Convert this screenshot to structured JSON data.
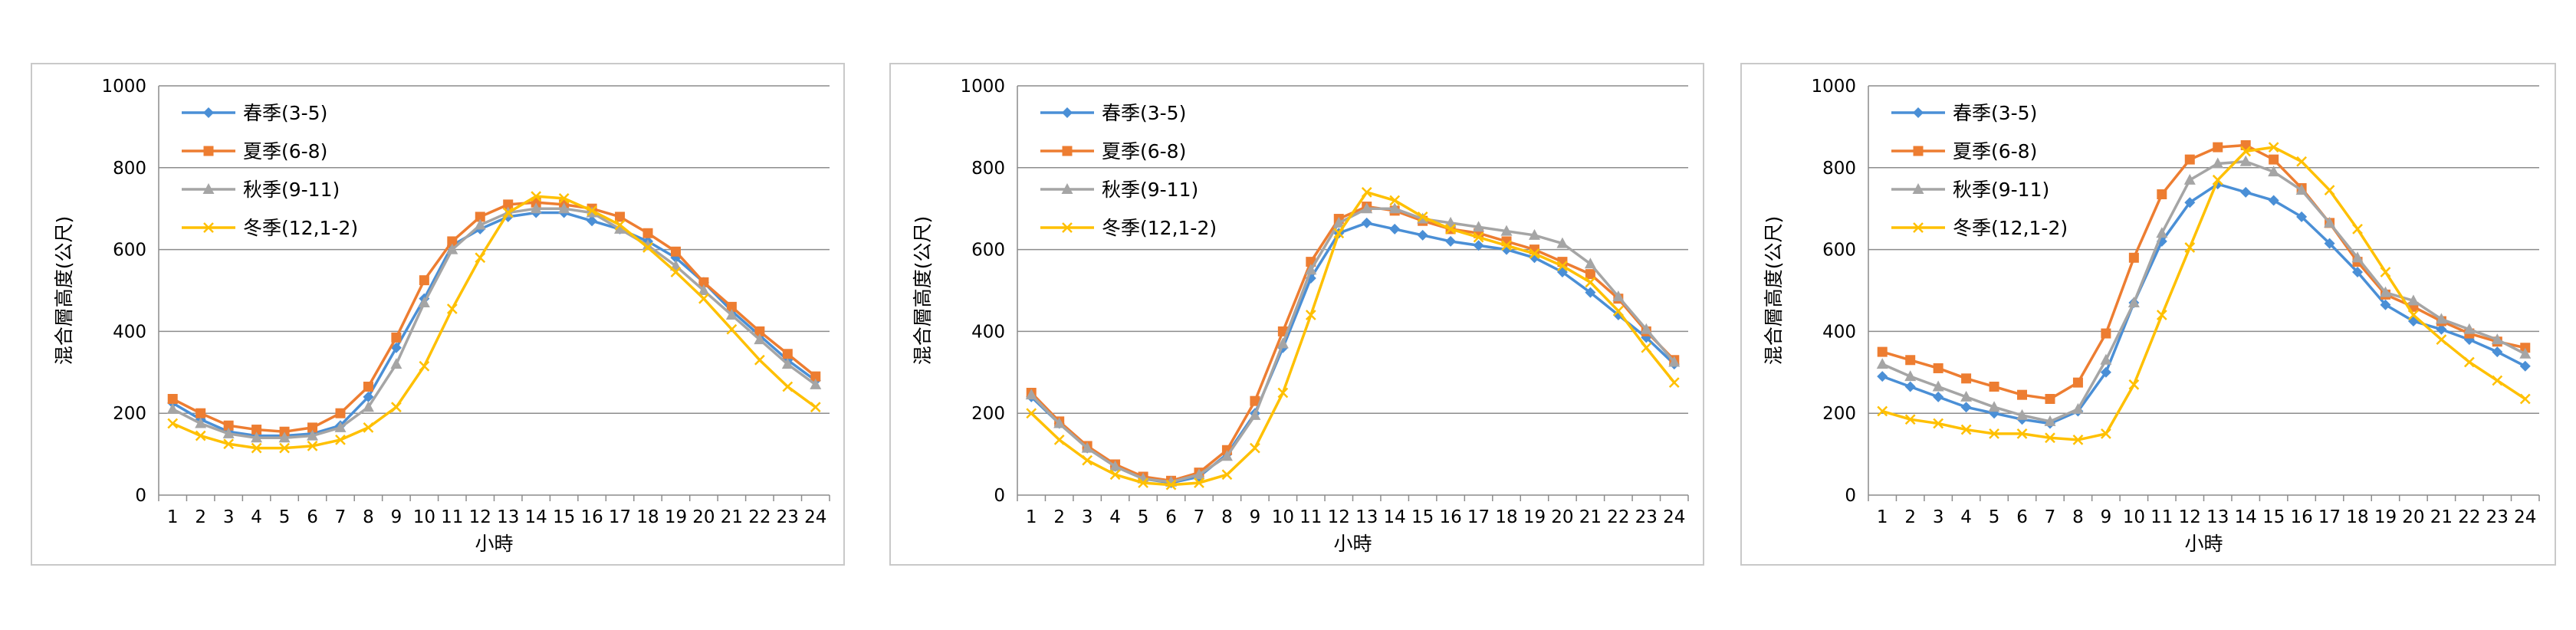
{
  "charts": [
    {
      "type": "line",
      "xlabel": "小時",
      "ylabel": "混合層高度(公尺)",
      "ylim": [
        0,
        1000
      ],
      "yticks": [
        0,
        200,
        400,
        600,
        800,
        1000
      ],
      "x": [
        1,
        2,
        3,
        4,
        5,
        6,
        7,
        8,
        9,
        10,
        11,
        12,
        13,
        14,
        15,
        16,
        17,
        18,
        19,
        20,
        21,
        22,
        23,
        24
      ],
      "grid": "horizontal",
      "legend_position": "top-left",
      "series": [
        {
          "name": "春季(3-5)",
          "color": "#4a8fd6",
          "marker": "diamond",
          "values": [
            225,
            185,
            155,
            145,
            145,
            150,
            170,
            240,
            360,
            480,
            610,
            650,
            680,
            690,
            690,
            670,
            650,
            620,
            580,
            520,
            450,
            390,
            330,
            280
          ]
        },
        {
          "name": "夏季(6-8)",
          "color": "#ed7d31",
          "marker": "square",
          "values": [
            235,
            200,
            170,
            160,
            155,
            165,
            200,
            265,
            385,
            525,
            620,
            680,
            710,
            715,
            710,
            700,
            680,
            640,
            595,
            520,
            460,
            400,
            345,
            290
          ]
        },
        {
          "name": "秋季(9-11)",
          "color": "#a5a5a5",
          "marker": "triangle",
          "values": [
            210,
            175,
            150,
            140,
            140,
            145,
            165,
            215,
            320,
            470,
            600,
            660,
            690,
            700,
            700,
            690,
            650,
            610,
            560,
            500,
            440,
            380,
            320,
            270
          ]
        },
        {
          "name": "冬季(12,1-2)",
          "color": "#ffc000",
          "marker": "x",
          "values": [
            175,
            145,
            125,
            115,
            115,
            120,
            135,
            165,
            215,
            315,
            455,
            580,
            690,
            730,
            725,
            695,
            660,
            605,
            545,
            480,
            405,
            330,
            265,
            215
          ]
        }
      ]
    },
    {
      "type": "line",
      "xlabel": "小時",
      "ylabel": "混合層高度(公尺)",
      "ylim": [
        0,
        1000
      ],
      "yticks": [
        0,
        200,
        400,
        600,
        800,
        1000
      ],
      "x": [
        1,
        2,
        3,
        4,
        5,
        6,
        7,
        8,
        9,
        10,
        11,
        12,
        13,
        14,
        15,
        16,
        17,
        18,
        19,
        20,
        21,
        22,
        23,
        24
      ],
      "grid": "horizontal",
      "legend_position": "top-left",
      "series": [
        {
          "name": "春季(3-5)",
          "color": "#4a8fd6",
          "marker": "diamond",
          "values": [
            240,
            175,
            115,
            70,
            40,
            30,
            45,
            100,
            200,
            360,
            530,
            640,
            665,
            650,
            635,
            620,
            610,
            600,
            580,
            545,
            495,
            440,
            385,
            320
          ]
        },
        {
          "name": "夏季(6-8)",
          "color": "#ed7d31",
          "marker": "square",
          "values": [
            250,
            180,
            120,
            75,
            45,
            35,
            55,
            110,
            230,
            400,
            570,
            675,
            705,
            695,
            670,
            650,
            640,
            620,
            600,
            570,
            540,
            480,
            400,
            330
          ]
        },
        {
          "name": "秋季(9-11)",
          "color": "#a5a5a5",
          "marker": "triangle",
          "values": [
            245,
            175,
            115,
            70,
            40,
            32,
            50,
            95,
            195,
            370,
            550,
            665,
            700,
            700,
            675,
            665,
            655,
            645,
            635,
            615,
            565,
            485,
            405,
            325
          ]
        },
        {
          "name": "冬季(12,1-2)",
          "color": "#ffc000",
          "marker": "x",
          "values": [
            200,
            135,
            85,
            50,
            30,
            25,
            30,
            50,
            115,
            250,
            440,
            640,
            740,
            720,
            680,
            650,
            630,
            610,
            590,
            560,
            520,
            450,
            360,
            275
          ]
        }
      ]
    },
    {
      "type": "line",
      "xlabel": "小時",
      "ylabel": "混合層高度(公尺)",
      "ylim": [
        0,
        1000
      ],
      "yticks": [
        0,
        200,
        400,
        600,
        800,
        1000
      ],
      "x": [
        1,
        2,
        3,
        4,
        5,
        6,
        7,
        8,
        9,
        10,
        11,
        12,
        13,
        14,
        15,
        16,
        17,
        18,
        19,
        20,
        21,
        22,
        23,
        24
      ],
      "grid": "horizontal",
      "legend_position": "top-left",
      "series": [
        {
          "name": "春季(3-5)",
          "color": "#4a8fd6",
          "marker": "diamond",
          "values": [
            290,
            265,
            240,
            215,
            200,
            185,
            175,
            205,
            300,
            470,
            620,
            715,
            760,
            740,
            720,
            680,
            615,
            545,
            465,
            425,
            405,
            380,
            350,
            315
          ]
        },
        {
          "name": "夏季(6-8)",
          "color": "#ed7d31",
          "marker": "square",
          "values": [
            350,
            330,
            310,
            285,
            265,
            245,
            235,
            275,
            395,
            580,
            735,
            820,
            850,
            855,
            820,
            750,
            665,
            570,
            490,
            460,
            425,
            395,
            375,
            360
          ]
        },
        {
          "name": "秋季(9-11)",
          "color": "#a5a5a5",
          "marker": "triangle",
          "values": [
            320,
            290,
            265,
            240,
            215,
            195,
            180,
            210,
            330,
            470,
            640,
            770,
            810,
            815,
            790,
            745,
            665,
            580,
            495,
            475,
            430,
            405,
            380,
            345
          ]
        },
        {
          "name": "冬季(12,1-2)",
          "color": "#ffc000",
          "marker": "x",
          "values": [
            205,
            185,
            175,
            160,
            150,
            150,
            140,
            135,
            150,
            270,
            440,
            605,
            770,
            840,
            850,
            815,
            745,
            650,
            545,
            440,
            380,
            325,
            280,
            235
          ]
        }
      ]
    }
  ]
}
